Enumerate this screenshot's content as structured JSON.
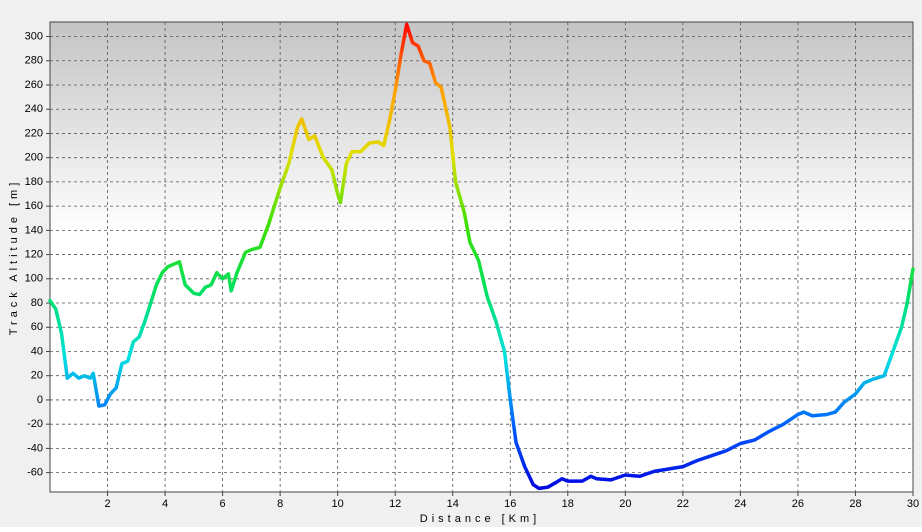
{
  "chart_data": {
    "type": "line",
    "x_label": "Distance [Km]",
    "y_label": "Track Altitude [m]",
    "x": [
      0,
      0.2,
      0.4,
      0.6,
      0.8,
      1.0,
      1.2,
      1.4,
      1.5,
      1.7,
      1.9,
      2.1,
      2.3,
      2.5,
      2.7,
      2.9,
      3.1,
      3.3,
      3.5,
      3.7,
      3.9,
      4.1,
      4.3,
      4.5,
      4.7,
      5.0,
      5.2,
      5.4,
      5.6,
      5.8,
      6.0,
      6.2,
      6.3,
      6.5,
      6.8,
      7.0,
      7.3,
      7.6,
      8.0,
      8.3,
      8.6,
      8.75,
      9.0,
      9.2,
      9.5,
      9.8,
      10.0,
      10.1,
      10.3,
      10.5,
      10.8,
      11.1,
      11.4,
      11.6,
      11.8,
      12.0,
      12.2,
      12.4,
      12.6,
      12.8,
      13.0,
      13.2,
      13.4,
      13.6,
      13.9,
      14.1,
      14.4,
      14.6,
      14.9,
      15.2,
      15.5,
      15.8,
      16.0,
      16.2,
      16.5,
      16.8,
      17.0,
      17.3,
      17.6,
      17.8,
      18.0,
      18.5,
      18.8,
      19.0,
      19.5,
      20.0,
      20.5,
      21.0,
      21.5,
      22.0,
      22.5,
      23.0,
      23.5,
      24.0,
      24.5,
      25.0,
      25.5,
      26.0,
      26.2,
      26.5,
      27.0,
      27.3,
      27.6,
      28.0,
      28.3,
      28.6,
      29.0,
      29.3,
      29.6,
      29.8,
      30.0
    ],
    "series": [
      {
        "colors": [
          "#0000e0",
          "#0060ff",
          "#00e0e0",
          "#00e060",
          "#40e000",
          "#e0e000",
          "#ffa000",
          "#ff0000"
        ],
        "values": [
          82,
          75,
          55,
          18,
          22,
          18,
          20,
          18,
          22,
          -5,
          -4,
          5,
          10,
          30,
          32,
          48,
          52,
          65,
          80,
          95,
          105,
          110,
          112,
          114,
          95,
          88,
          87,
          93,
          95,
          105,
          100,
          104,
          90,
          105,
          122,
          124,
          126,
          145,
          175,
          195,
          225,
          232,
          215,
          218,
          200,
          190,
          170,
          163,
          195,
          205,
          205,
          212,
          213,
          210,
          230,
          255,
          285,
          310,
          295,
          292,
          280,
          278,
          262,
          258,
          225,
          180,
          155,
          130,
          115,
          85,
          65,
          40,
          0,
          -35,
          -55,
          -70,
          -73,
          -72,
          -68,
          -65,
          -67,
          -67,
          -63,
          -65,
          -66,
          -62,
          -63,
          -59,
          -57,
          -55,
          -50,
          -46,
          -42,
          -36,
          -33,
          -26,
          -20,
          -12,
          -10,
          -13,
          -12,
          -10,
          -2,
          5,
          14,
          17,
          20,
          40,
          60,
          80,
          108
        ]
      }
    ],
    "xlim": [
      0,
      30
    ],
    "xticks": [
      2,
      4,
      6,
      8,
      10,
      12,
      14,
      16,
      18,
      20,
      22,
      24,
      26,
      28,
      30
    ],
    "ylim": [
      -76,
      312
    ],
    "yticks": [
      -60,
      -40,
      -20,
      0,
      20,
      40,
      60,
      80,
      100,
      120,
      140,
      160,
      180,
      200,
      220,
      240,
      260,
      280,
      300
    ],
    "grid": true
  }
}
